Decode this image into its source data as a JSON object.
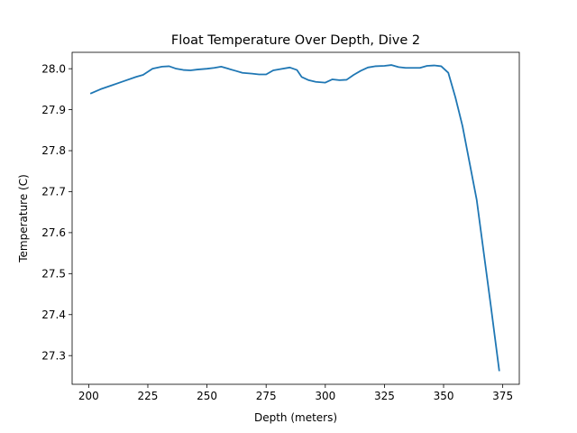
{
  "chart_data": {
    "type": "line",
    "title": "Float Temperature Over Depth, Dive 2",
    "xlabel": "Depth (meters)",
    "ylabel": "Temperature (C)",
    "xlim": [
      193,
      382
    ],
    "ylim": [
      27.23,
      28.04
    ],
    "xticks": [
      200,
      225,
      250,
      275,
      300,
      325,
      350,
      375
    ],
    "yticks": [
      27.3,
      27.4,
      27.5,
      27.6,
      27.7,
      27.8,
      27.9,
      28.0
    ],
    "xtick_labels": [
      "200",
      "225",
      "250",
      "275",
      "300",
      "325",
      "350",
      "375"
    ],
    "ytick_labels": [
      "27.3",
      "27.4",
      "27.5",
      "27.6",
      "27.7",
      "27.8",
      "27.9",
      "28.0"
    ],
    "grid": false,
    "color": "#1f77b4",
    "series": [
      {
        "x": [
          201,
          205,
          210,
          215,
          220,
          223,
          227,
          231,
          234,
          237,
          240,
          243,
          246,
          250,
          253,
          256,
          259,
          262,
          265,
          269,
          272,
          275,
          278,
          281,
          285,
          288,
          290,
          293,
          296,
          300,
          303,
          306,
          309,
          312,
          315,
          318,
          321,
          325,
          328,
          331,
          334,
          337,
          340,
          343,
          346,
          349,
          352,
          355,
          358,
          361,
          364,
          367,
          370,
          373.5
        ],
        "y": [
          27.94,
          27.95,
          27.96,
          27.97,
          27.98,
          27.985,
          28.0,
          28.005,
          28.006,
          28.0,
          27.997,
          27.996,
          27.998,
          28.0,
          28.002,
          28.005,
          28.0,
          27.995,
          27.99,
          27.988,
          27.986,
          27.986,
          27.996,
          27.999,
          28.003,
          27.997,
          27.98,
          27.972,
          27.968,
          27.966,
          27.974,
          27.972,
          27.973,
          27.985,
          27.995,
          28.003,
          28.006,
          28.007,
          28.009,
          28.004,
          28.002,
          28.002,
          28.002,
          28.007,
          28.008,
          28.006,
          27.99,
          27.93,
          27.86,
          27.77,
          27.68,
          27.55,
          27.42,
          27.264
        ]
      }
    ]
  }
}
